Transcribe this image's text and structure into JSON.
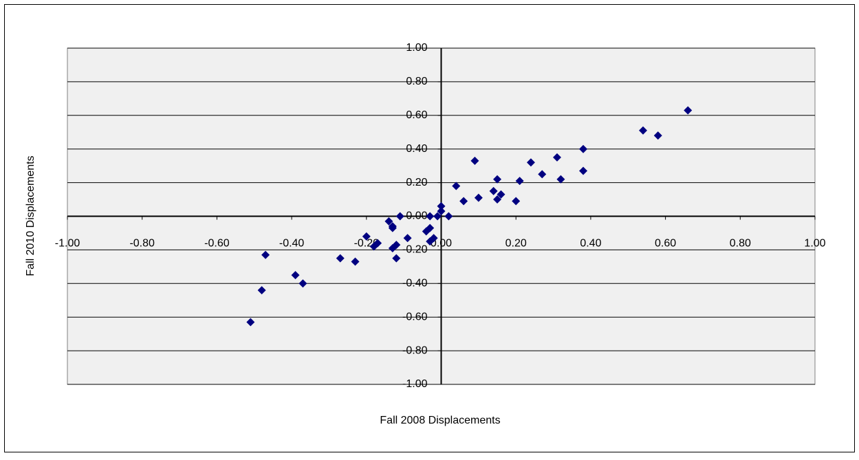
{
  "chart_data": {
    "type": "scatter",
    "x_label": "Fall 2008  Displacements",
    "y_label": "Fall 2010  Displacements",
    "xlim": [
      -1,
      1
    ],
    "ylim": [
      -1,
      1
    ],
    "xticks": [
      {
        "value": -1,
        "label": "-1.00"
      },
      {
        "value": -0.8,
        "label": "-0.80"
      },
      {
        "value": -0.6,
        "label": "-0.60"
      },
      {
        "value": -0.4,
        "label": "-0.40"
      },
      {
        "value": -0.2,
        "label": "-0.20"
      },
      {
        "value": 0,
        "label": "0.00"
      },
      {
        "value": 0.2,
        "label": "0.20"
      },
      {
        "value": 0.4,
        "label": "0.40"
      },
      {
        "value": 0.6,
        "label": "0.60"
      },
      {
        "value": 0.8,
        "label": "0.80"
      },
      {
        "value": 1,
        "label": "1.00"
      }
    ],
    "yticks": [
      {
        "value": 1,
        "label": "1.00"
      },
      {
        "value": 0.8,
        "label": "0.80"
      },
      {
        "value": 0.6,
        "label": "0.60"
      },
      {
        "value": 0.4,
        "label": "0.40"
      },
      {
        "value": 0.2,
        "label": "0.20"
      },
      {
        "value": 0,
        "label": "0.00"
      },
      {
        "value": -0.2,
        "label": "-0.20"
      },
      {
        "value": -0.4,
        "label": "-0.40"
      },
      {
        "value": -0.6,
        "label": "-0.60"
      },
      {
        "value": -0.8,
        "label": "-0.80"
      },
      {
        "value": -1,
        "label": "-1.00"
      }
    ],
    "grid": true,
    "series": [
      {
        "color": "#000080",
        "x": [
          0.66,
          0.54,
          0.58,
          0.38,
          0.38,
          0.31,
          0.32,
          0.24,
          0.27,
          0.21,
          0.2,
          0.15,
          0.16,
          0.14,
          0.15,
          0.09,
          0.1,
          0.06,
          0.04,
          0.02,
          0.0,
          0.0,
          -0.01,
          -0.03,
          -0.03,
          -0.04,
          -0.02,
          -0.03,
          -0.11,
          -0.14,
          -0.13,
          -0.13,
          -0.09,
          -0.12,
          -0.13,
          -0.12,
          -0.17,
          -0.18,
          -0.2,
          -0.23,
          -0.27,
          -0.47,
          -0.39,
          -0.37,
          -0.48,
          -0.51
        ],
        "values": [
          0.63,
          0.51,
          0.48,
          0.4,
          0.27,
          0.35,
          0.22,
          0.32,
          0.25,
          0.21,
          0.09,
          0.22,
          0.13,
          0.15,
          0.1,
          0.33,
          0.11,
          0.09,
          0.18,
          0.0,
          0.06,
          0.03,
          0.0,
          0.0,
          -0.07,
          -0.09,
          -0.13,
          -0.15,
          0.0,
          -0.03,
          -0.06,
          -0.07,
          -0.13,
          -0.17,
          -0.19,
          -0.25,
          -0.16,
          -0.18,
          -0.12,
          -0.27,
          -0.25,
          -0.23,
          -0.35,
          -0.4,
          -0.44,
          -0.63
        ]
      }
    ]
  }
}
